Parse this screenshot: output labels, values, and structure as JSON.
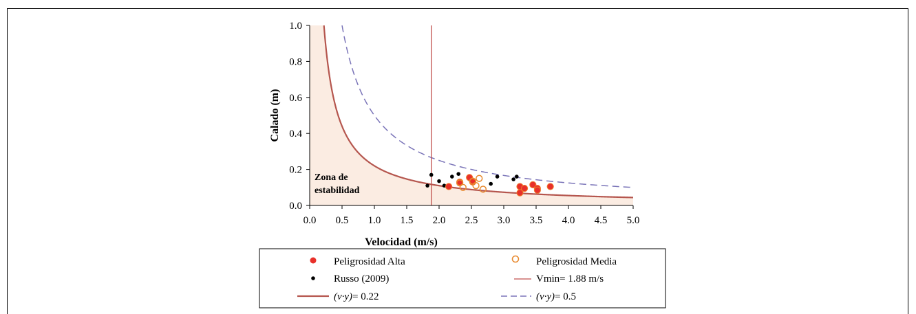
{
  "chart_data": {
    "type": "scatter",
    "xlabel": "Velocidad  (m/s)",
    "ylabel": "Calado (m)",
    "xlim": [
      0,
      5
    ],
    "ylim": [
      0,
      1
    ],
    "xticks": [
      "0.0",
      "0.5",
      "1.0",
      "1.5",
      "2.0",
      "2.5",
      "3.0",
      "3.5",
      "4.0",
      "4.5",
      "5.0"
    ],
    "yticks": [
      "0.0",
      "0.2",
      "0.4",
      "0.6",
      "0.8",
      "1.0"
    ],
    "grid": false,
    "legend_position": "bottom",
    "annotation": [
      "Zona de",
      "estabilidad"
    ],
    "colors": {
      "alta": "#e8302a",
      "alta_edge": "#f07b2a",
      "media": "#e8892e",
      "russo": "#000000",
      "vmin": "#c0504d",
      "curve_022": "#b5564e",
      "curve_05": "#7a74b8",
      "zone_fill": "#fbece2"
    },
    "series": [
      {
        "name": "Peligrosidad Alta",
        "kind": "filled-red",
        "points": [
          [
            2.15,
            0.105
          ],
          [
            2.32,
            0.13
          ],
          [
            2.47,
            0.155
          ],
          [
            2.52,
            0.13
          ],
          [
            3.25,
            0.105
          ],
          [
            3.25,
            0.07
          ],
          [
            3.32,
            0.095
          ],
          [
            3.45,
            0.115
          ],
          [
            3.52,
            0.095
          ],
          [
            3.52,
            0.085
          ],
          [
            3.72,
            0.105
          ]
        ]
      },
      {
        "name": "Peligrosidad Media",
        "kind": "open-orange",
        "points": [
          [
            2.32,
            0.125
          ],
          [
            2.37,
            0.1
          ],
          [
            2.52,
            0.135
          ],
          [
            2.57,
            0.11
          ],
          [
            2.62,
            0.15
          ],
          [
            2.68,
            0.09
          ]
        ]
      },
      {
        "name": "Russo (2009)",
        "kind": "black-dot",
        "points": [
          [
            1.82,
            0.11
          ],
          [
            1.88,
            0.17
          ],
          [
            2.0,
            0.135
          ],
          [
            2.08,
            0.11
          ],
          [
            2.2,
            0.16
          ],
          [
            2.3,
            0.175
          ],
          [
            2.32,
            0.135
          ],
          [
            2.47,
            0.145
          ],
          [
            2.8,
            0.12
          ],
          [
            2.9,
            0.16
          ],
          [
            3.15,
            0.145
          ],
          [
            3.2,
            0.16
          ]
        ]
      },
      {
        "name": "Vmin= 1.88 m/s",
        "kind": "vline",
        "x": 1.88
      },
      {
        "name": "(v·y)= 0.22",
        "kind": "hyperbola",
        "k": 0.22
      },
      {
        "name": "(v·y)= 0.5",
        "kind": "hyperbola-dashed",
        "k": 0.5
      }
    ]
  },
  "legend": {
    "alta": "Peligrosidad Alta",
    "media": "Peligrosidad Media",
    "russo": "Russo (2009)",
    "vmin": "Vmin= 1.88 m/s",
    "curve_022": "= 0.22",
    "curve_05": "= 0.5",
    "vy": "(v·y)"
  }
}
